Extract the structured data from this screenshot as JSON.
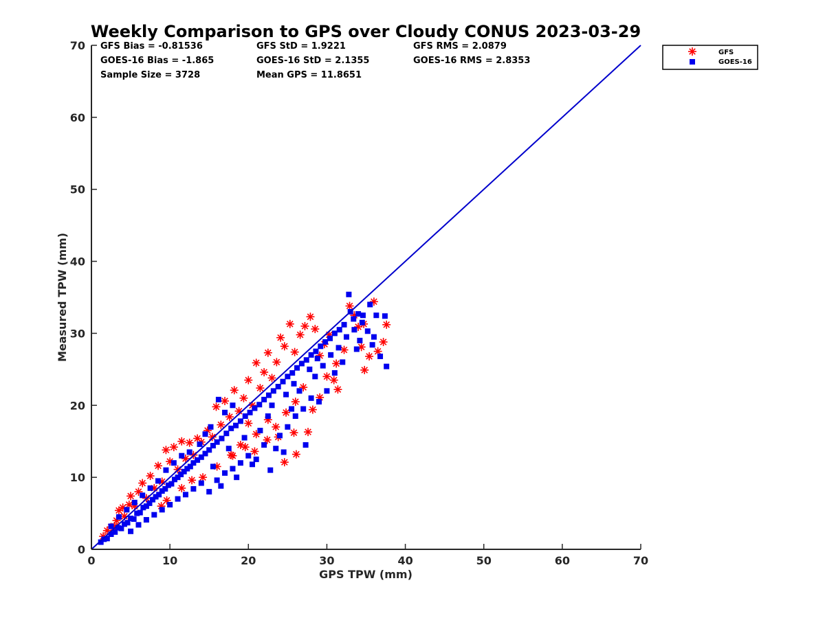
{
  "chart_data": {
    "type": "scatter",
    "title": "Weekly Comparison to GPS over Cloudy CONUS 2023-03-29",
    "xlabel": "GPS TPW (mm)",
    "ylabel": "Measured TPW (mm)",
    "xlim": [
      0,
      70
    ],
    "ylim": [
      0,
      70
    ],
    "xticks": [
      "0",
      "10",
      "20",
      "30",
      "40",
      "50",
      "60",
      "70"
    ],
    "yticks": [
      "0",
      "10",
      "20",
      "30",
      "40",
      "50",
      "60",
      "70"
    ],
    "grid": false,
    "legend_position": "outside-top-right",
    "reference_line": {
      "x": [
        0,
        70
      ],
      "y": [
        0,
        70
      ],
      "color": "#0000cc"
    },
    "stats": [
      [
        "GFS Bias = -0.81536",
        "GFS StD = 1.9221",
        "GFS RMS = 2.0879"
      ],
      [
        "GOES-16 Bias = -1.865",
        "GOES-16 StD = 2.1355",
        "GOES-16 RMS = 2.8353"
      ],
      [
        "Sample Size = 3728",
        "Mean GPS = 11.8651",
        ""
      ]
    ],
    "series": [
      {
        "name": "GFS",
        "marker": "asterisk",
        "color": "#ff0000",
        "points": [
          [
            1.5,
            1.8
          ],
          [
            2.0,
            2.6
          ],
          [
            2.5,
            3.1
          ],
          [
            3.0,
            3.2
          ],
          [
            3.2,
            4.0
          ],
          [
            3.5,
            5.4
          ],
          [
            4.0,
            5.8
          ],
          [
            4.2,
            4.6
          ],
          [
            4.8,
            6.2
          ],
          [
            5.0,
            7.4
          ],
          [
            5.5,
            6.0
          ],
          [
            6.0,
            8.0
          ],
          [
            6.5,
            9.2
          ],
          [
            7.0,
            7.1
          ],
          [
            7.5,
            10.2
          ],
          [
            8.0,
            8.5
          ],
          [
            8.5,
            11.6
          ],
          [
            9.0,
            9.4
          ],
          [
            9.5,
            13.8
          ],
          [
            10.0,
            12.2
          ],
          [
            10.5,
            14.2
          ],
          [
            11.0,
            11.1
          ],
          [
            11.5,
            15.0
          ],
          [
            12.0,
            12.6
          ],
          [
            12.5,
            14.8
          ],
          [
            13.0,
            13.1
          ],
          [
            13.5,
            15.4
          ],
          [
            14.0,
            14.9
          ],
          [
            14.8,
            16.5
          ],
          [
            15.4,
            15.6
          ],
          [
            15.9,
            19.8
          ],
          [
            16.5,
            17.3
          ],
          [
            17.0,
            20.6
          ],
          [
            17.6,
            18.4
          ],
          [
            18.2,
            22.1
          ],
          [
            18.8,
            19.2
          ],
          [
            19.4,
            21.0
          ],
          [
            20.0,
            23.5
          ],
          [
            20.5,
            20.0
          ],
          [
            21.0,
            25.9
          ],
          [
            21.5,
            22.4
          ],
          [
            22.0,
            24.6
          ],
          [
            22.5,
            27.3
          ],
          [
            23.0,
            23.8
          ],
          [
            23.6,
            26.0
          ],
          [
            24.1,
            29.4
          ],
          [
            24.6,
            28.2
          ],
          [
            25.3,
            31.3
          ],
          [
            25.9,
            27.4
          ],
          [
            26.6,
            29.8
          ],
          [
            27.2,
            31.0
          ],
          [
            27.9,
            32.3
          ],
          [
            28.5,
            30.6
          ],
          [
            29.1,
            26.9
          ],
          [
            29.7,
            28.5
          ],
          [
            30.3,
            29.8
          ],
          [
            30.9,
            23.5
          ],
          [
            31.4,
            22.2
          ],
          [
            32.2,
            27.7
          ],
          [
            32.9,
            33.8
          ],
          [
            33.5,
            32.5
          ],
          [
            34.0,
            30.9
          ],
          [
            34.8,
            24.9
          ],
          [
            35.4,
            26.8
          ],
          [
            36.0,
            34.4
          ],
          [
            36.5,
            27.5
          ],
          [
            37.2,
            28.8
          ],
          [
            37.6,
            31.2
          ],
          [
            34.4,
            28.1
          ],
          [
            34.7,
            31.3
          ],
          [
            8.9,
            6.0
          ],
          [
            9.6,
            6.8
          ],
          [
            11.5,
            8.5
          ],
          [
            12.8,
            9.6
          ],
          [
            14.2,
            10.0
          ],
          [
            16.0,
            11.5
          ],
          [
            17.8,
            13.1
          ],
          [
            19.6,
            14.2
          ],
          [
            20.8,
            13.6
          ],
          [
            22.4,
            15.2
          ],
          [
            23.8,
            15.6
          ],
          [
            24.6,
            12.1
          ],
          [
            25.8,
            16.2
          ],
          [
            26.1,
            13.2
          ],
          [
            27.6,
            16.3
          ],
          [
            28.2,
            19.4
          ],
          [
            29.1,
            21.1
          ],
          [
            30.0,
            24.0
          ],
          [
            31.2,
            25.8
          ],
          [
            24.8,
            19.0
          ],
          [
            19.0,
            14.5
          ],
          [
            21.0,
            16.0
          ],
          [
            22.5,
            18.0
          ],
          [
            26.0,
            20.5
          ],
          [
            27.0,
            22.5
          ],
          [
            23.5,
            17.0
          ],
          [
            18.0,
            13.0
          ],
          [
            20.0,
            17.5
          ]
        ]
      },
      {
        "name": "GOES-16",
        "marker": "square",
        "color": "#0000ee",
        "points": [
          [
            1.2,
            1.0
          ],
          [
            1.6,
            1.4
          ],
          [
            2.0,
            1.5
          ],
          [
            2.5,
            2.1
          ],
          [
            3.0,
            2.4
          ],
          [
            3.4,
            3.0
          ],
          [
            3.8,
            2.9
          ],
          [
            4.2,
            3.5
          ],
          [
            4.6,
            3.7
          ],
          [
            5.0,
            4.3
          ],
          [
            5.4,
            4.2
          ],
          [
            5.8,
            5.0
          ],
          [
            6.2,
            5.1
          ],
          [
            6.6,
            5.8
          ],
          [
            7.0,
            6.0
          ],
          [
            7.4,
            6.4
          ],
          [
            7.8,
            6.9
          ],
          [
            8.2,
            7.3
          ],
          [
            8.6,
            7.6
          ],
          [
            9.0,
            8.1
          ],
          [
            9.4,
            8.4
          ],
          [
            9.8,
            8.9
          ],
          [
            10.2,
            9.1
          ],
          [
            10.6,
            9.7
          ],
          [
            11.0,
            10.0
          ],
          [
            11.4,
            10.4
          ],
          [
            11.8,
            10.8
          ],
          [
            12.2,
            11.2
          ],
          [
            12.6,
            11.5
          ],
          [
            13.0,
            12.0
          ],
          [
            13.5,
            12.4
          ],
          [
            14.0,
            12.8
          ],
          [
            14.5,
            13.3
          ],
          [
            15.0,
            13.8
          ],
          [
            15.5,
            14.4
          ],
          [
            16.0,
            14.9
          ],
          [
            16.6,
            15.4
          ],
          [
            17.2,
            16.1
          ],
          [
            17.8,
            16.8
          ],
          [
            18.4,
            17.2
          ],
          [
            19.0,
            17.8
          ],
          [
            19.6,
            18.5
          ],
          [
            20.2,
            19.0
          ],
          [
            20.8,
            19.6
          ],
          [
            21.4,
            20.1
          ],
          [
            22.0,
            20.8
          ],
          [
            22.6,
            21.4
          ],
          [
            23.2,
            22.0
          ],
          [
            23.8,
            22.6
          ],
          [
            24.4,
            23.3
          ],
          [
            25.0,
            24.0
          ],
          [
            25.6,
            24.5
          ],
          [
            26.2,
            25.2
          ],
          [
            26.8,
            25.8
          ],
          [
            27.4,
            26.3
          ],
          [
            28.0,
            27.0
          ],
          [
            28.6,
            27.5
          ],
          [
            29.2,
            28.2
          ],
          [
            29.8,
            28.8
          ],
          [
            30.4,
            29.3
          ],
          [
            31.0,
            30.0
          ],
          [
            31.6,
            30.5
          ],
          [
            32.2,
            31.2
          ],
          [
            32.8,
            35.4
          ],
          [
            33.4,
            32.0
          ],
          [
            34.0,
            32.7
          ],
          [
            34.6,
            32.5
          ],
          [
            35.2,
            30.3
          ],
          [
            35.8,
            28.4
          ],
          [
            36.3,
            32.5
          ],
          [
            36.8,
            26.8
          ],
          [
            37.4,
            32.4
          ],
          [
            37.6,
            25.4
          ],
          [
            34.2,
            29.0
          ],
          [
            33.0,
            33.0
          ],
          [
            35.5,
            34.0
          ],
          [
            36.0,
            29.5
          ],
          [
            33.8,
            27.8
          ],
          [
            5.0,
            2.5
          ],
          [
            6.0,
            3.4
          ],
          [
            7.0,
            4.1
          ],
          [
            8.0,
            4.8
          ],
          [
            9.0,
            5.5
          ],
          [
            10.0,
            6.2
          ],
          [
            11.0,
            7.0
          ],
          [
            12.0,
            7.6
          ],
          [
            13.0,
            8.4
          ],
          [
            14.0,
            9.2
          ],
          [
            15.0,
            8.0
          ],
          [
            16.0,
            9.6
          ],
          [
            17.0,
            10.6
          ],
          [
            18.0,
            11.2
          ],
          [
            19.0,
            12.0
          ],
          [
            20.0,
            13.0
          ],
          [
            21.0,
            12.5
          ],
          [
            22.0,
            14.5
          ],
          [
            22.8,
            11.0
          ],
          [
            24.0,
            15.8
          ],
          [
            25.0,
            17.0
          ],
          [
            26.0,
            18.5
          ],
          [
            27.0,
            19.5
          ],
          [
            28.0,
            21.0
          ],
          [
            29.0,
            20.5
          ],
          [
            30.0,
            22.0
          ],
          [
            31.0,
            24.5
          ],
          [
            32.0,
            26.0
          ],
          [
            27.3,
            14.5
          ],
          [
            25.5,
            19.5
          ],
          [
            16.5,
            8.8
          ],
          [
            18.5,
            10.0
          ],
          [
            20.5,
            11.8
          ],
          [
            23.5,
            14.0
          ],
          [
            24.5,
            13.5
          ],
          [
            21.5,
            16.5
          ],
          [
            26.5,
            22.0
          ],
          [
            28.5,
            24.0
          ],
          [
            29.5,
            25.5
          ],
          [
            30.5,
            27.0
          ],
          [
            15.5,
            11.5
          ],
          [
            17.5,
            14.0
          ],
          [
            19.5,
            15.5
          ],
          [
            22.5,
            18.5
          ],
          [
            23.0,
            20.0
          ],
          [
            24.8,
            21.5
          ],
          [
            25.8,
            23.0
          ],
          [
            27.8,
            25.0
          ],
          [
            28.8,
            26.5
          ],
          [
            31.5,
            28.0
          ],
          [
            32.5,
            29.5
          ],
          [
            33.5,
            30.5
          ],
          [
            34.5,
            31.5
          ],
          [
            14.5,
            16.0
          ],
          [
            15.2,
            17.0
          ],
          [
            16.2,
            20.8
          ],
          [
            17.0,
            19.0
          ],
          [
            18.0,
            20.0
          ],
          [
            12.5,
            13.5
          ],
          [
            13.8,
            14.6
          ],
          [
            9.5,
            11.0
          ],
          [
            10.5,
            12.0
          ],
          [
            11.5,
            13.0
          ],
          [
            8.5,
            9.5
          ],
          [
            7.5,
            8.5
          ],
          [
            6.5,
            7.5
          ],
          [
            5.5,
            6.5
          ],
          [
            4.5,
            5.5
          ],
          [
            3.5,
            4.5
          ],
          [
            2.5,
            3.2
          ]
        ]
      }
    ]
  }
}
